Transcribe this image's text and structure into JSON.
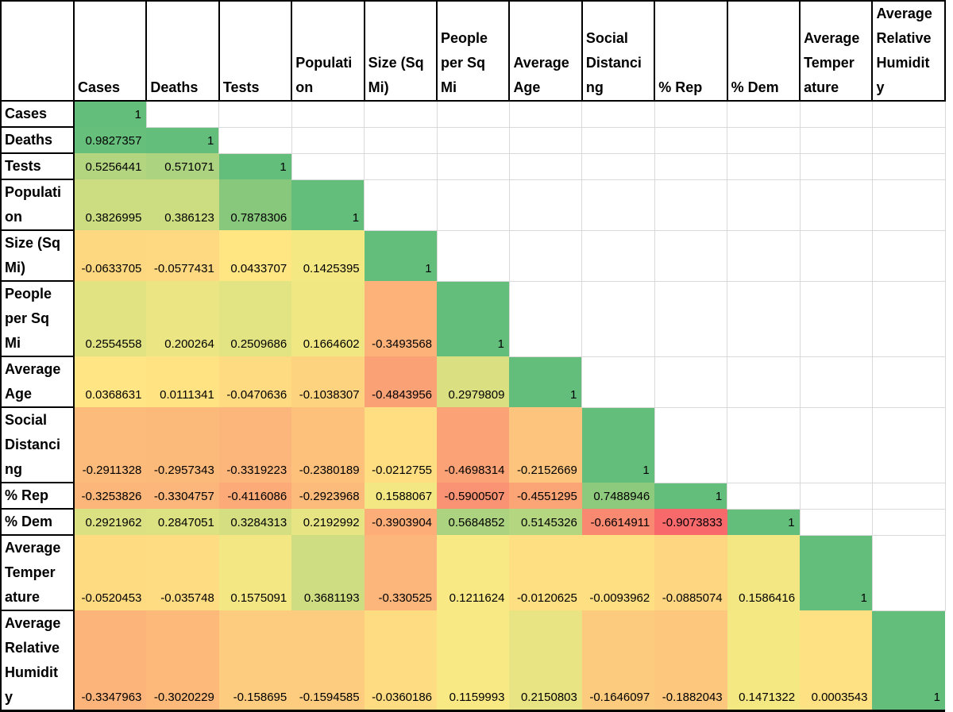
{
  "chart_data": {
    "type": "heatmap",
    "title": "",
    "labels": [
      "Cases",
      "Deaths",
      "Tests",
      "Population",
      "Size (Sq Mi)",
      "People per Sq Mi",
      "Average Age",
      "Social Distancing",
      "% Rep",
      "% Dem",
      "Average Temperature",
      "Average Relative Humidity"
    ],
    "label_lines": [
      [
        "Cases"
      ],
      [
        "Deaths"
      ],
      [
        "Tests"
      ],
      [
        "Populati",
        "on"
      ],
      [
        "Size (Sq",
        "Mi)"
      ],
      [
        "People",
        "per Sq",
        "Mi"
      ],
      [
        "Average",
        "Age"
      ],
      [
        "Social",
        "Distanci",
        "ng"
      ],
      [
        "% Rep"
      ],
      [
        "% Dem"
      ],
      [
        "Average",
        "Temper",
        "ature"
      ],
      [
        "Average",
        "Relative",
        "Humidit",
        "y"
      ]
    ],
    "matrix": [
      [
        1
      ],
      [
        0.9827357,
        1
      ],
      [
        0.5256441,
        0.571071,
        1
      ],
      [
        0.3826995,
        0.386123,
        0.7878306,
        1
      ],
      [
        -0.0633705,
        -0.0577431,
        0.0433707,
        0.1425395,
        1
      ],
      [
        0.2554558,
        0.200264,
        0.2509686,
        0.1664602,
        -0.3493568,
        1
      ],
      [
        0.0368631,
        0.0111341,
        -0.0470636,
        -0.1038307,
        -0.4843956,
        0.2979809,
        1
      ],
      [
        -0.2911328,
        -0.2957343,
        -0.3319223,
        -0.2380189,
        -0.0212755,
        -0.4698314,
        -0.2152669,
        1
      ],
      [
        -0.3253826,
        -0.3304757,
        -0.4116086,
        -0.2923968,
        0.1588067,
        -0.5900507,
        -0.4551295,
        0.7488946,
        1
      ],
      [
        0.2921962,
        0.2847051,
        0.3284313,
        0.2192992,
        -0.3903904,
        0.5684852,
        0.5145326,
        -0.6614911,
        -0.9073833,
        1
      ],
      [
        -0.0520453,
        -0.035748,
        0.1575091,
        0.3681193,
        -0.330525,
        0.1211624,
        -0.0120625,
        -0.0093962,
        -0.0885074,
        0.1586416,
        1
      ],
      [
        -0.3347963,
        -0.3020229,
        -0.158695,
        -0.1594585,
        -0.0360186,
        0.1159993,
        0.2150803,
        -0.1646097,
        -0.1882043,
        0.1471322,
        0.0003543,
        1
      ]
    ],
    "color_scale": {
      "type": "3-color",
      "min_value": -0.9073833,
      "mid_value": 0.079685,
      "max_value": 1,
      "min_color": "#F8696B",
      "mid_color": "#FFEB84",
      "max_color": "#63BE7B"
    },
    "colors": {
      "gridline": "#D9D9D9",
      "header_border": "#000000",
      "background": "#FFFFFF",
      "text": "#000000"
    },
    "layout_hints": {
      "lower_triangle_only": true,
      "legend": "none",
      "grid": true,
      "value_align": "bottom-right"
    }
  }
}
